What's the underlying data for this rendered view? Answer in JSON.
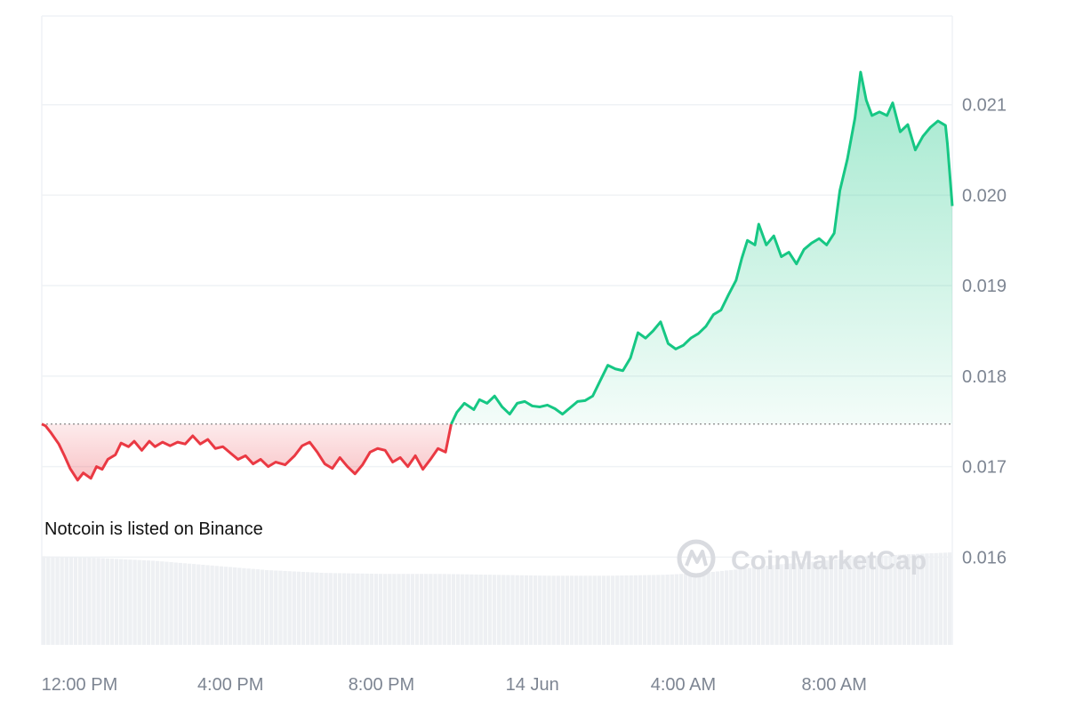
{
  "chart_data": {
    "type": "area",
    "baseline": 0.01747,
    "annotation": "Notcoin is listed on Binance",
    "watermark": "CoinMarketCap",
    "y_ticks": [
      "0.021",
      "0.020",
      "0.019",
      "0.018",
      "0.017",
      "0.016"
    ],
    "y_tick_values": [
      0.021,
      0.02,
      0.019,
      0.018,
      0.017,
      0.016
    ],
    "x_ticks": [
      "12:00 PM",
      "4:00 PM",
      "8:00 PM",
      "14 Jun",
      "4:00 AM",
      "8:00 AM"
    ],
    "x_tick_hours": [
      12,
      16,
      20,
      24,
      28,
      32
    ],
    "ylim": [
      0.01503,
      0.02198
    ],
    "xlim_hours": [
      11.0,
      35.13
    ],
    "grid": true,
    "colors": {
      "up": "#16c784",
      "down": "#ea3943",
      "volume": "#eef0f3",
      "grid": "#eff2f5",
      "baseline": "#888888"
    },
    "price": [
      [
        11.0,
        0.01747
      ],
      [
        11.1,
        0.01745
      ],
      [
        11.25,
        0.01737
      ],
      [
        11.45,
        0.01725
      ],
      [
        11.6,
        0.01712
      ],
      [
        11.75,
        0.01698
      ],
      [
        11.95,
        0.01685
      ],
      [
        12.1,
        0.01693
      ],
      [
        12.3,
        0.01687
      ],
      [
        12.45,
        0.017
      ],
      [
        12.6,
        0.01697
      ],
      [
        12.75,
        0.01708
      ],
      [
        12.95,
        0.01713
      ],
      [
        13.1,
        0.01726
      ],
      [
        13.3,
        0.01722
      ],
      [
        13.45,
        0.01728
      ],
      [
        13.65,
        0.01718
      ],
      [
        13.85,
        0.01728
      ],
      [
        14.0,
        0.01722
      ],
      [
        14.2,
        0.01727
      ],
      [
        14.4,
        0.01723
      ],
      [
        14.6,
        0.01727
      ],
      [
        14.8,
        0.01725
      ],
      [
        15.0,
        0.01734
      ],
      [
        15.2,
        0.01725
      ],
      [
        15.4,
        0.0173
      ],
      [
        15.6,
        0.0172
      ],
      [
        15.8,
        0.01722
      ],
      [
        16.0,
        0.01715
      ],
      [
        16.2,
        0.01708
      ],
      [
        16.4,
        0.01712
      ],
      [
        16.6,
        0.01703
      ],
      [
        16.8,
        0.01708
      ],
      [
        17.0,
        0.017
      ],
      [
        17.2,
        0.01705
      ],
      [
        17.45,
        0.01702
      ],
      [
        17.7,
        0.01712
      ],
      [
        17.9,
        0.01723
      ],
      [
        18.1,
        0.01727
      ],
      [
        18.3,
        0.01716
      ],
      [
        18.5,
        0.01703
      ],
      [
        18.7,
        0.01698
      ],
      [
        18.9,
        0.0171
      ],
      [
        19.1,
        0.017
      ],
      [
        19.3,
        0.01692
      ],
      [
        19.5,
        0.01702
      ],
      [
        19.7,
        0.01716
      ],
      [
        19.9,
        0.0172
      ],
      [
        20.1,
        0.01718
      ],
      [
        20.3,
        0.01705
      ],
      [
        20.5,
        0.0171
      ],
      [
        20.7,
        0.017
      ],
      [
        20.9,
        0.01712
      ],
      [
        21.1,
        0.01697
      ],
      [
        21.3,
        0.01708
      ],
      [
        21.5,
        0.0172
      ],
      [
        21.7,
        0.01716
      ],
      [
        21.85,
        0.01747
      ],
      [
        22.0,
        0.0176
      ],
      [
        22.2,
        0.0177
      ],
      [
        22.45,
        0.01763
      ],
      [
        22.6,
        0.01774
      ],
      [
        22.8,
        0.0177
      ],
      [
        23.0,
        0.01778
      ],
      [
        23.2,
        0.01766
      ],
      [
        23.4,
        0.01758
      ],
      [
        23.6,
        0.0177
      ],
      [
        23.8,
        0.01772
      ],
      [
        24.0,
        0.01767
      ],
      [
        24.2,
        0.01766
      ],
      [
        24.4,
        0.01768
      ],
      [
        24.6,
        0.01764
      ],
      [
        24.8,
        0.01758
      ],
      [
        25.0,
        0.01765
      ],
      [
        25.2,
        0.01772
      ],
      [
        25.4,
        0.01773
      ],
      [
        25.6,
        0.01778
      ],
      [
        25.8,
        0.01795
      ],
      [
        26.0,
        0.01812
      ],
      [
        26.2,
        0.01808
      ],
      [
        26.4,
        0.01806
      ],
      [
        26.6,
        0.0182
      ],
      [
        26.8,
        0.01848
      ],
      [
        27.0,
        0.01842
      ],
      [
        27.2,
        0.0185
      ],
      [
        27.4,
        0.0186
      ],
      [
        27.6,
        0.01836
      ],
      [
        27.8,
        0.0183
      ],
      [
        28.0,
        0.01834
      ],
      [
        28.2,
        0.01842
      ],
      [
        28.4,
        0.01847
      ],
      [
        28.6,
        0.01855
      ],
      [
        28.8,
        0.01868
      ],
      [
        29.0,
        0.01873
      ],
      [
        29.2,
        0.0189
      ],
      [
        29.4,
        0.01906
      ],
      [
        29.55,
        0.0193
      ],
      [
        29.7,
        0.0195
      ],
      [
        29.9,
        0.01945
      ],
      [
        30.0,
        0.01968
      ],
      [
        30.2,
        0.01945
      ],
      [
        30.4,
        0.01955
      ],
      [
        30.6,
        0.01932
      ],
      [
        30.8,
        0.01937
      ],
      [
        31.0,
        0.01924
      ],
      [
        31.2,
        0.0194
      ],
      [
        31.4,
        0.01947
      ],
      [
        31.6,
        0.01952
      ],
      [
        31.8,
        0.01945
      ],
      [
        32.0,
        0.01958
      ],
      [
        32.15,
        0.02005
      ],
      [
        32.35,
        0.0204
      ],
      [
        32.55,
        0.02085
      ],
      [
        32.7,
        0.02136
      ],
      [
        32.85,
        0.02105
      ],
      [
        33.0,
        0.02088
      ],
      [
        33.2,
        0.02092
      ],
      [
        33.4,
        0.02088
      ],
      [
        33.55,
        0.02102
      ],
      [
        33.75,
        0.0207
      ],
      [
        33.95,
        0.02078
      ],
      [
        34.15,
        0.0205
      ],
      [
        34.35,
        0.02065
      ],
      [
        34.55,
        0.02075
      ],
      [
        34.75,
        0.02082
      ],
      [
        34.95,
        0.02077
      ],
      [
        35.0,
        0.02057
      ],
      [
        35.13,
        0.01988
      ]
    ],
    "volume": [
      [
        11.0,
        0.95
      ],
      [
        12.5,
        0.93
      ],
      [
        14.0,
        0.9
      ],
      [
        15.5,
        0.85
      ],
      [
        17.0,
        0.8
      ],
      [
        18.5,
        0.77
      ],
      [
        20.0,
        0.76
      ],
      [
        21.5,
        0.76
      ],
      [
        23.0,
        0.75
      ],
      [
        24.5,
        0.74
      ],
      [
        26.0,
        0.74
      ],
      [
        27.5,
        0.75
      ],
      [
        28.5,
        0.77
      ],
      [
        29.5,
        0.81
      ],
      [
        30.5,
        0.86
      ],
      [
        31.5,
        0.89
      ],
      [
        32.2,
        0.92
      ],
      [
        33.0,
        0.95
      ],
      [
        34.0,
        0.97
      ],
      [
        35.13,
        0.99
      ]
    ]
  }
}
